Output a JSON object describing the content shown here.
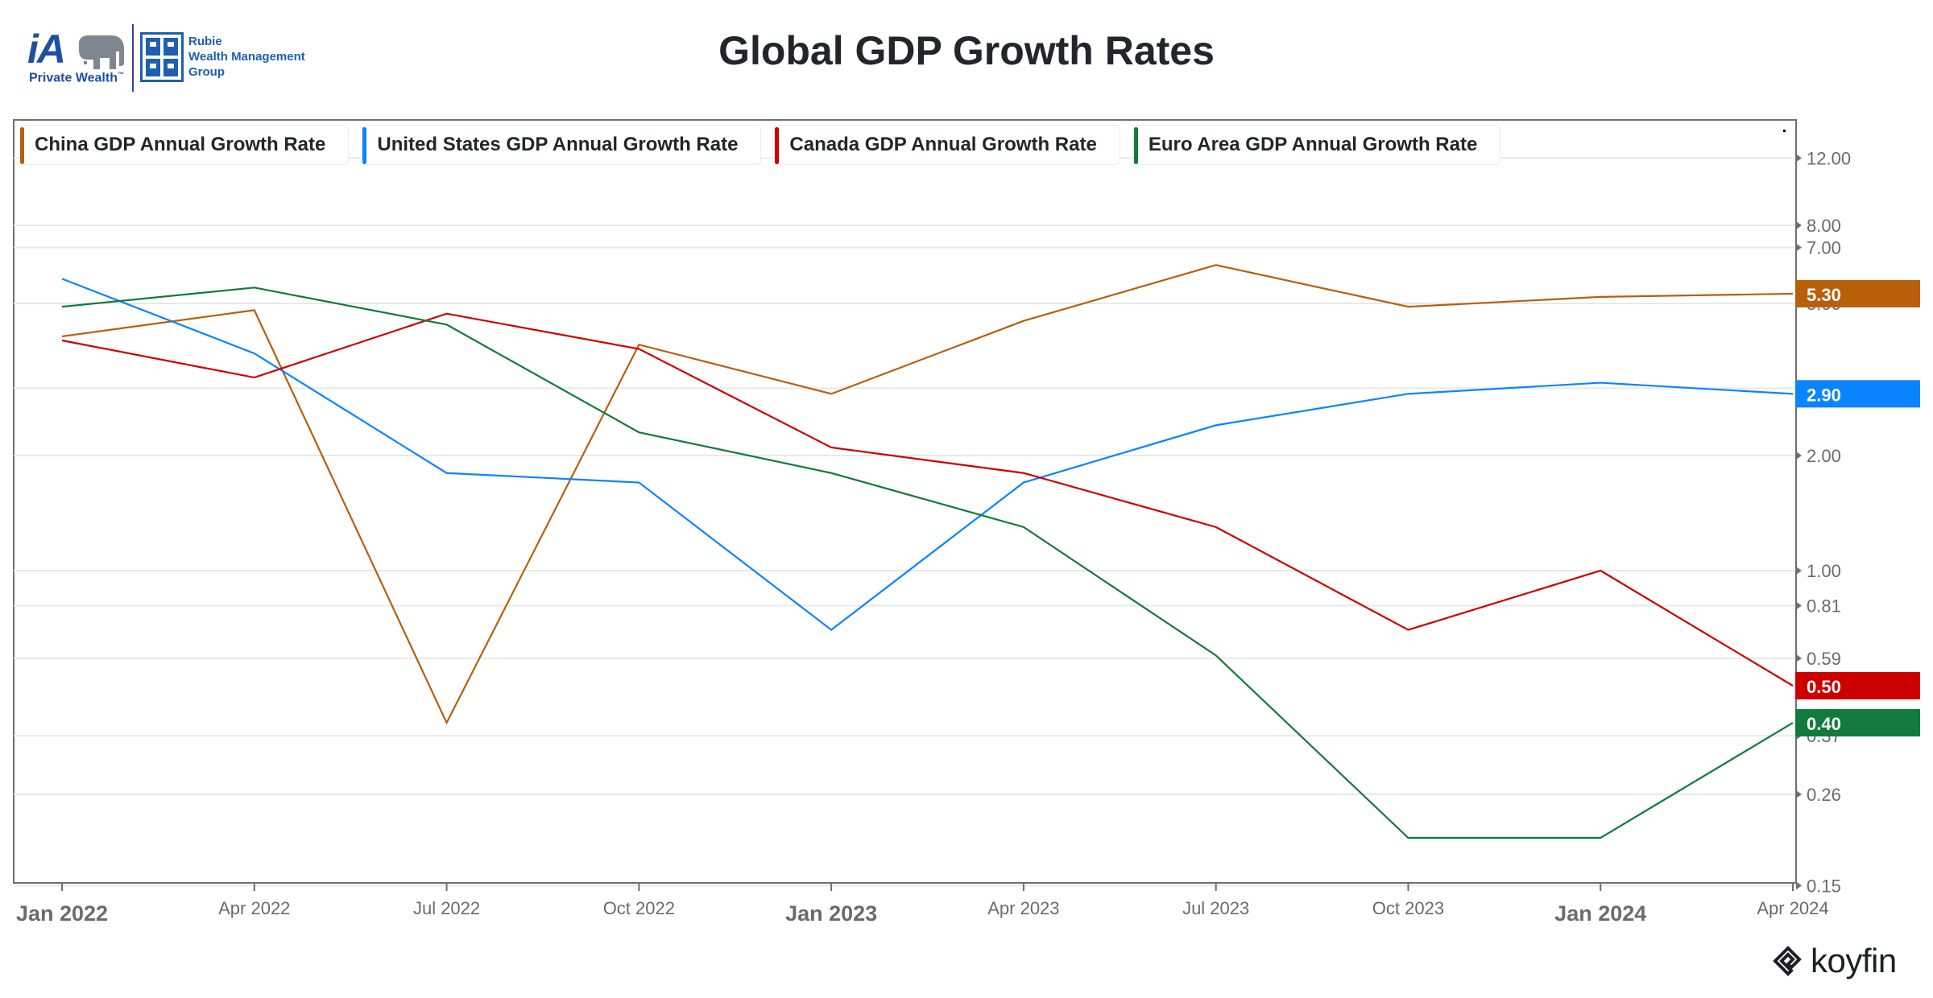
{
  "header": {
    "logo_ia_mark": "iA",
    "logo_ia_sub": "Private Wealth",
    "logo_ia_tm": "™",
    "logo_rubie_lines": [
      "Rubie",
      "Wealth Management",
      "Group"
    ]
  },
  "footer": {
    "brand": "koyfin"
  },
  "colors": {
    "china": "#b85f0a",
    "united_states": "#0a84ff",
    "canada": "#cc0000",
    "euro_area": "#117a3c",
    "grid": "#e9e9e9",
    "axis": "#6e6e6e",
    "tick_text": "#6b6b6b"
  },
  "chart_data": {
    "type": "line",
    "title": "Global GDP Growth Rates",
    "xlabel": "",
    "ylabel": "",
    "y_scale": "log",
    "y_axis_side": "right",
    "ylim": [
      0.15,
      14.5
    ],
    "grid": true,
    "legend_placement": "top-left",
    "x": [
      "Jan 2022",
      "Apr 2022",
      "Jul 2022",
      "Oct 2022",
      "Jan 2023",
      "Apr 2023",
      "Jul 2023",
      "Oct 2023",
      "Jan 2024",
      "Apr 2024"
    ],
    "x_tick_labels": [
      {
        "label": "Jan 2022",
        "major": true
      },
      {
        "label": "Apr 2022",
        "major": false
      },
      {
        "label": "Jul 2022",
        "major": false
      },
      {
        "label": "Oct 2022",
        "major": false
      },
      {
        "label": "Jan 2023",
        "major": true
      },
      {
        "label": "Apr 2023",
        "major": false
      },
      {
        "label": "Jul 2023",
        "major": false
      },
      {
        "label": "Oct 2023",
        "major": false
      },
      {
        "label": "Jan 2024",
        "major": true
      },
      {
        "label": "Apr 2024",
        "major": false
      }
    ],
    "y_ticks": [
      {
        "value": 12,
        "label": "12.00"
      },
      {
        "value": 8,
        "label": "8.00"
      },
      {
        "value": 7,
        "label": "7.00"
      },
      {
        "value": 5,
        "label": "5.00"
      },
      {
        "value": 3,
        "label": "3.00"
      },
      {
        "value": 2,
        "label": "2.00"
      },
      {
        "value": 1,
        "label": "1.00"
      },
      {
        "value": 0.81,
        "label": "0.81"
      },
      {
        "value": 0.59,
        "label": "0.59"
      },
      {
        "value": 0.37,
        "label": "0.37"
      },
      {
        "value": 0.26,
        "label": "0.26"
      },
      {
        "value": 0.15,
        "label": "0.15"
      }
    ],
    "series": [
      {
        "key": "china",
        "name": "China GDP Annual Growth Rate",
        "values": [
          4.1,
          4.8,
          0.4,
          3.9,
          2.9,
          4.5,
          6.3,
          4.9,
          5.2,
          5.3
        ],
        "last_label": "5.30"
      },
      {
        "key": "united_states",
        "name": "United States GDP Annual Growth Rate",
        "values": [
          5.8,
          3.7,
          1.8,
          1.7,
          0.7,
          1.7,
          2.4,
          2.9,
          3.1,
          2.9
        ],
        "last_label": "2.90"
      },
      {
        "key": "canada",
        "name": "Canada GDP Annual Growth Rate",
        "values": [
          4.0,
          3.2,
          4.7,
          3.8,
          2.1,
          1.8,
          1.3,
          0.7,
          1.0,
          0.5
        ],
        "last_label": "0.50"
      },
      {
        "key": "euro_area",
        "name": "Euro Area GDP Annual Growth Rate",
        "values": [
          4.9,
          5.5,
          4.4,
          2.3,
          1.8,
          1.3,
          0.6,
          0.2,
          0.2,
          0.4
        ],
        "last_label": "0.40"
      }
    ]
  }
}
